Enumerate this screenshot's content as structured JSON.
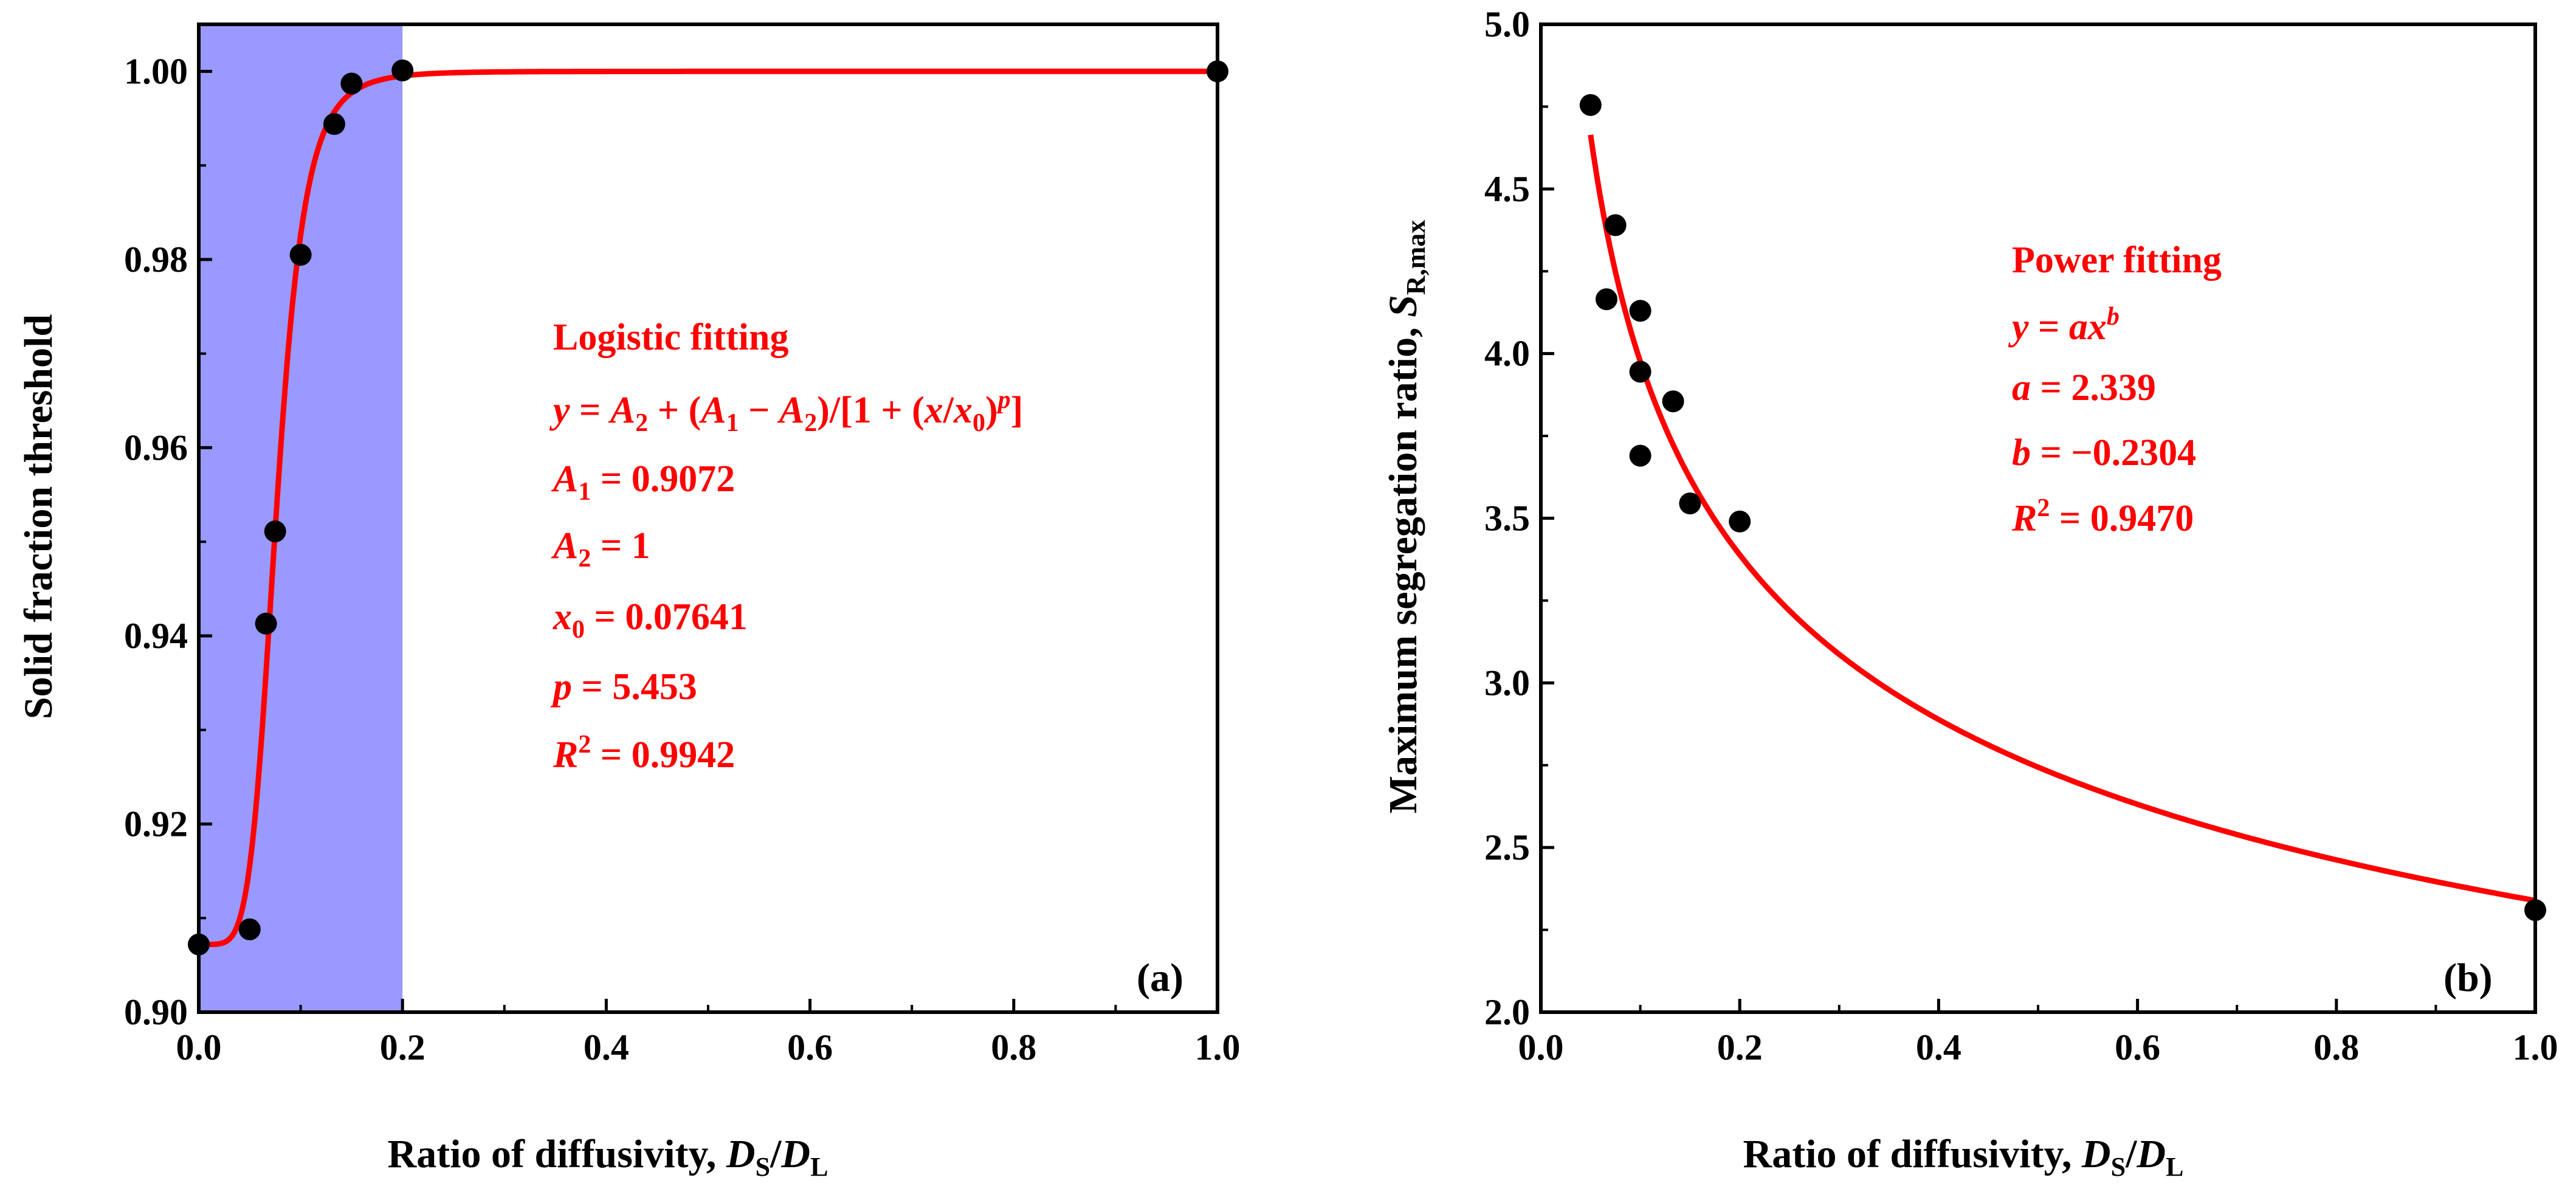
{
  "chart_data": [
    {
      "type": "scatter",
      "panel_label": "(a)",
      "xlabel": {
        "text": "Ratio of diffusivity, ",
        "var": "D",
        "sub1": "S",
        "slash": "/",
        "var2": "D",
        "sub2": "L"
      },
      "ylabel": "Solid fraction threshold",
      "xlim": [
        0.0,
        1.0
      ],
      "ylim": [
        0.9,
        1.005
      ],
      "x_ticks": [
        "0.0",
        "0.2",
        "0.4",
        "0.6",
        "0.8",
        "1.0"
      ],
      "y_ticks": [
        "0.90",
        "0.92",
        "0.94",
        "0.96",
        "0.98",
        "1.00"
      ],
      "shaded_region": {
        "x_from": 0.0,
        "x_to": 0.2,
        "color": "#9999ff"
      },
      "points": {
        "x": [
          0.0,
          0.05,
          0.066,
          0.075,
          0.1,
          0.133,
          0.15,
          0.2,
          1.0
        ],
        "y": [
          0.9072,
          0.9088,
          0.9413,
          0.9511,
          0.9805,
          0.9944,
          0.9987,
          1.0001,
          1.0
        ]
      },
      "fit": {
        "model": "logistic",
        "A1": 0.9072,
        "A2": 1.0,
        "x0": 0.07641,
        "p": 5.453,
        "color": "#ff0000"
      },
      "annotation": {
        "title": "Logistic fitting",
        "equation": "y = A2 + (A1 − A2)/[1 + (x/x0)^p]",
        "A1": "0.9072",
        "A2": "1",
        "x0": "0.07641",
        "p": "5.453",
        "R2": "0.9942"
      }
    },
    {
      "type": "scatter",
      "panel_label": "(b)",
      "xlabel": {
        "text": "Ratio of diffusivity, ",
        "var": "D",
        "sub1": "S",
        "slash": "/",
        "var2": "D",
        "sub2": "L"
      },
      "ylabel": {
        "text": "Maximum segregation ratio, ",
        "var": "S",
        "sub": "R,max"
      },
      "xlim": [
        0.0,
        1.0
      ],
      "ylim": [
        2.0,
        5.0
      ],
      "x_ticks": [
        "0.0",
        "0.2",
        "0.4",
        "0.6",
        "0.8",
        "1.0"
      ],
      "y_ticks": [
        "2.0",
        "2.5",
        "3.0",
        "3.5",
        "4.0",
        "4.5",
        "5.0"
      ],
      "points": {
        "x": [
          0.05,
          0.066,
          0.075,
          0.1,
          0.1,
          0.1,
          0.133,
          0.15,
          0.2,
          1.0
        ],
        "y": [
          4.755,
          4.165,
          4.39,
          4.13,
          3.945,
          3.69,
          3.855,
          3.545,
          3.49,
          2.31
        ]
      },
      "fit": {
        "model": "power",
        "a": 2.339,
        "b": -0.2304,
        "x_range": [
          0.05,
          1.0
        ],
        "color": "#ff0000"
      },
      "annotation": {
        "title": "Power fitting",
        "a": "2.339",
        "b": "−0.2304",
        "R2": "0.9470"
      }
    }
  ]
}
